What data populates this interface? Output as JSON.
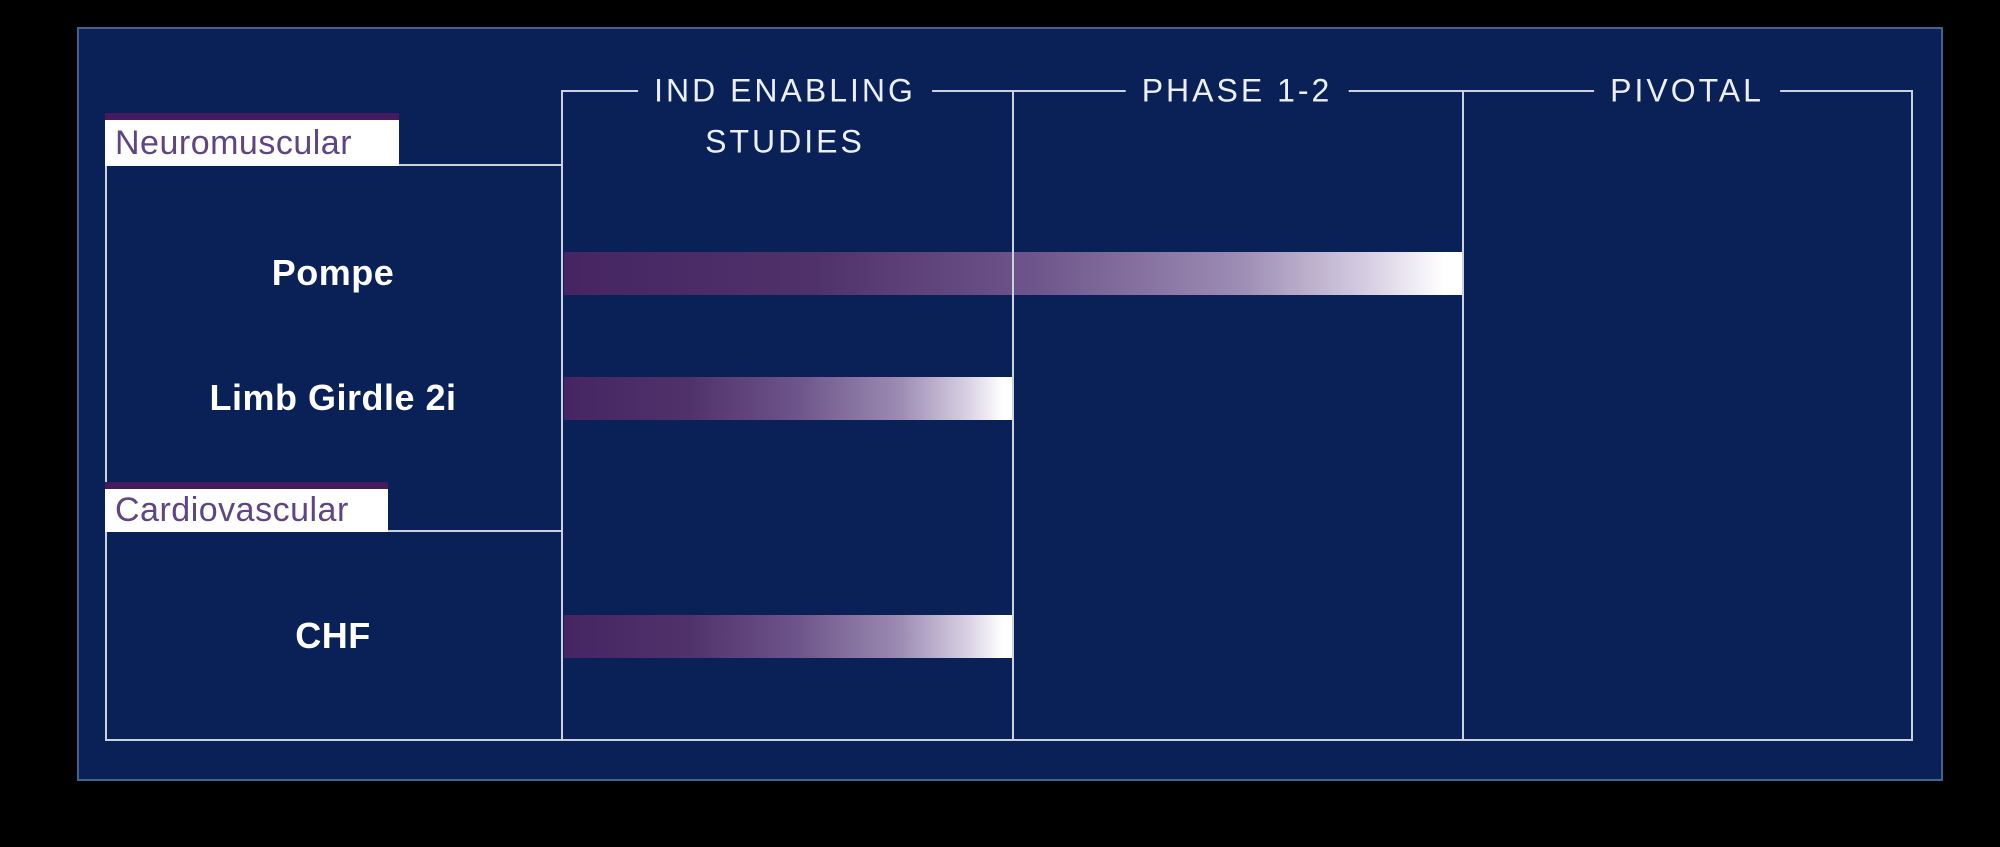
{
  "slide": {
    "background_color": "#0a2158",
    "frame_line_color": "#ccd1e0",
    "border_color": "#41628e"
  },
  "columns": [
    {
      "label_line1": "IND ENABLING",
      "label_line2": "STUDIES"
    },
    {
      "label_line1": "PHASE 1-2",
      "label_line2": ""
    },
    {
      "label_line1": "PIVOTAL",
      "label_line2": ""
    }
  ],
  "chart_data": {
    "type": "bar",
    "orientation": "horizontal",
    "title": "",
    "stages": [
      "IND ENABLING STUDIES",
      "PHASE 1-2",
      "PIVOTAL"
    ],
    "total_stages": 3,
    "grid": "column dividers only",
    "legend": "none",
    "bar_gradient": [
      "#462562",
      "#6d548a",
      "#ffffff"
    ],
    "groups": [
      {
        "group": "Neuromuscular",
        "rows": [
          {
            "program": "Pompe",
            "progress_stages": 2,
            "stage_reached": "PHASE 1-2"
          },
          {
            "program": "Limb Girdle 2i",
            "progress_stages": 1,
            "stage_reached": "IND ENABLING STUDIES"
          }
        ]
      },
      {
        "group": "Cardiovascular",
        "rows": [
          {
            "program": "CHF",
            "progress_stages": 1,
            "stage_reached": "IND ENABLING STUDIES"
          }
        ]
      }
    ],
    "colors": {
      "group_label_text": "#5f4584",
      "group_label_top_border": "#451a5e",
      "program_label_text": "#ffffff",
      "header_text": "#edeff8"
    }
  }
}
